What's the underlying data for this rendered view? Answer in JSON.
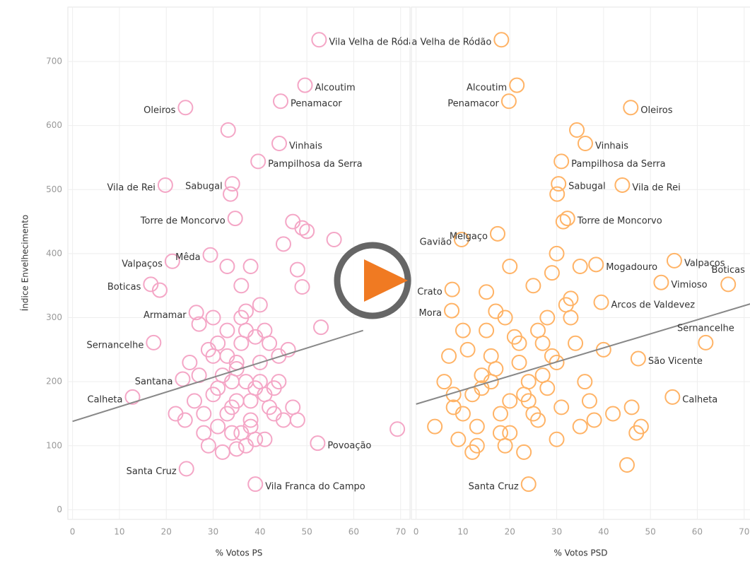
{
  "chart_data": [
    {
      "type": "scatter",
      "xlabel": "% Votos PS",
      "ylabel": "Índice Envelhecimento",
      "color": "#f4a6c6",
      "xlim": [
        -1,
        72
      ],
      "ylim": [
        -15,
        785
      ],
      "xticks": [
        0,
        10,
        20,
        30,
        40,
        50,
        60,
        70
      ],
      "yticks": [
        0,
        100,
        200,
        300,
        400,
        500,
        600,
        700
      ],
      "grid": true,
      "trend": {
        "x": [
          0,
          62
        ],
        "y": [
          138,
          280
        ]
      },
      "labels": [
        "Vila Velha de Ródão",
        "Alcoutim",
        "Penamacor",
        "Oleiros",
        null,
        "Vinhais",
        "Pampilhosa da Serra",
        "Sabugal",
        null,
        "Vila de Rei",
        "Torre de Moncorvo",
        "Mêda",
        "Valpaços",
        "Boticas",
        null,
        "Armamar",
        "Sernancelhe",
        "Santana",
        "Calheta",
        "Povoação",
        "Vila Franca do Campo",
        "Santa Cruz",
        null,
        null,
        null,
        null,
        null,
        null,
        null,
        null,
        null,
        null,
        null,
        null,
        null,
        null,
        null,
        null,
        null,
        null,
        null,
        null,
        null,
        null,
        null,
        null,
        null,
        null,
        null,
        null,
        null,
        null,
        null,
        null,
        null,
        null,
        null,
        null,
        null,
        null,
        null,
        null,
        null,
        null,
        null,
        null,
        null,
        null,
        null,
        null,
        null,
        null,
        null,
        null,
        null,
        null,
        null,
        null,
        null,
        null,
        null,
        null,
        null,
        null,
        null,
        null,
        null,
        null,
        null,
        null
      ],
      "x": [
        52.6,
        49.6,
        44.4,
        24.1,
        33.2,
        44.1,
        39.6,
        34.1,
        33.7,
        19.8,
        34.7,
        29.4,
        21.3,
        16.7,
        18.6,
        26.4,
        17.3,
        23.5,
        12.8,
        52.3,
        39,
        24.3,
        69.3,
        47,
        49,
        55.8,
        50,
        45,
        48,
        53,
        49,
        28,
        30,
        32,
        33,
        34,
        35,
        36,
        37,
        38,
        39,
        40,
        41,
        42,
        29,
        31,
        33,
        35,
        37,
        39,
        41,
        43,
        27,
        30,
        34,
        36,
        38,
        40,
        44,
        26,
        28,
        31,
        33,
        35,
        37,
        39,
        42,
        45,
        32,
        34,
        36,
        38,
        30,
        40,
        24,
        46,
        48,
        22,
        25,
        43,
        47,
        36,
        33,
        29,
        38,
        41,
        35,
        31,
        27,
        44,
        37
      ],
      "y": [
        734,
        663,
        638,
        628,
        593,
        572,
        544,
        509,
        493,
        507,
        455,
        398,
        388,
        352,
        343,
        308,
        261,
        204,
        176,
        104,
        40,
        64,
        126,
        450,
        440,
        422,
        435,
        415,
        375,
        285,
        348,
        150,
        180,
        210,
        240,
        120,
        170,
        260,
        200,
        140,
        190,
        230,
        110,
        160,
        250,
        130,
        280,
        220,
        100,
        270,
        180,
        150,
        210,
        240,
        160,
        300,
        130,
        200,
        240,
        170,
        120,
        190,
        150,
        230,
        280,
        110,
        260,
        140,
        90,
        200,
        120,
        170,
        300,
        320,
        140,
        250,
        140,
        150,
        230,
        190,
        160,
        350,
        380,
        100,
        380,
        280,
        95,
        260,
        290,
        200,
        310
      ]
    },
    {
      "type": "scatter",
      "xlabel": "% Votos PSD",
      "color": "#ffb366",
      "xlim": [
        -1,
        72
      ],
      "ylim": [
        -15,
        785
      ],
      "xticks": [
        0,
        10,
        20,
        30,
        40,
        50,
        60,
        70
      ],
      "yticks": [
        0,
        100,
        200,
        300,
        400,
        500,
        600,
        700
      ],
      "grid": true,
      "trend": {
        "x": [
          0,
          72
        ],
        "y": [
          165,
          323
        ]
      },
      "labels": [
        "Vila Velha de Ródão",
        "Alcoutim",
        "Penamacor",
        "Oleiros",
        null,
        "Vinhais",
        "Pampilhosa da Serra",
        "Sabugal",
        null,
        "Vila de Rei",
        "Torre de Moncorvo",
        null,
        "Melgaço",
        "Gavião",
        "Mogadouro",
        "Valpaços",
        "Vimioso",
        "Boticas",
        "Crato",
        "Mora",
        "Arcos de Valdevez",
        "Sernancelhe",
        "São Vicente",
        "Calheta",
        "Santa Cruz",
        null,
        null,
        null,
        null,
        null,
        null,
        null,
        null,
        null,
        null,
        null,
        null,
        null,
        null,
        null,
        null,
        null,
        null,
        null,
        null,
        null,
        null,
        null,
        null,
        null,
        null,
        null,
        null,
        null,
        null,
        null,
        null,
        null,
        null,
        null,
        null,
        null,
        null,
        null,
        null,
        null,
        null,
        null,
        null,
        null,
        null,
        null,
        null,
        null,
        null,
        null,
        null,
        null,
        null,
        null,
        null,
        null,
        null,
        null,
        null,
        null,
        null,
        null
      ],
      "x": [
        18.2,
        21.5,
        19.8,
        45.8,
        34.3,
        36.1,
        31,
        30.4,
        30.1,
        44,
        32.3,
        31.4,
        17.4,
        9.7,
        38.4,
        55.1,
        52.3,
        66.6,
        7.7,
        7.6,
        39.5,
        61.8,
        47.4,
        54.7,
        24,
        45,
        46,
        47,
        48,
        10,
        12,
        14,
        16,
        18,
        20,
        22,
        24,
        26,
        28,
        30,
        6,
        8,
        11,
        13,
        15,
        17,
        19,
        21,
        23,
        25,
        27,
        29,
        31,
        33,
        35,
        9,
        14,
        18,
        22,
        26,
        30,
        34,
        38,
        12,
        16,
        20,
        24,
        28,
        32,
        4,
        7,
        36,
        40,
        42,
        10,
        15,
        20,
        25,
        30,
        35,
        19,
        13,
        27,
        33,
        23,
        17,
        8,
        29,
        37
      ],
      "y": [
        734,
        663,
        638,
        628,
        593,
        572,
        544,
        509,
        493,
        507,
        455,
        450,
        431,
        422,
        383,
        389,
        355,
        352,
        344,
        311,
        324,
        261,
        236,
        176,
        40,
        70,
        160,
        120,
        130,
        150,
        180,
        210,
        240,
        120,
        170,
        260,
        200,
        140,
        190,
        230,
        200,
        160,
        250,
        130,
        280,
        220,
        100,
        270,
        180,
        150,
        210,
        240,
        160,
        300,
        130,
        110,
        190,
        150,
        230,
        280,
        110,
        260,
        140,
        90,
        200,
        120,
        170,
        300,
        320,
        130,
        240,
        200,
        250,
        150,
        280,
        340,
        380,
        350,
        400,
        380,
        300,
        100,
        260,
        330,
        90,
        310,
        180,
        370,
        170
      ]
    }
  ]
}
